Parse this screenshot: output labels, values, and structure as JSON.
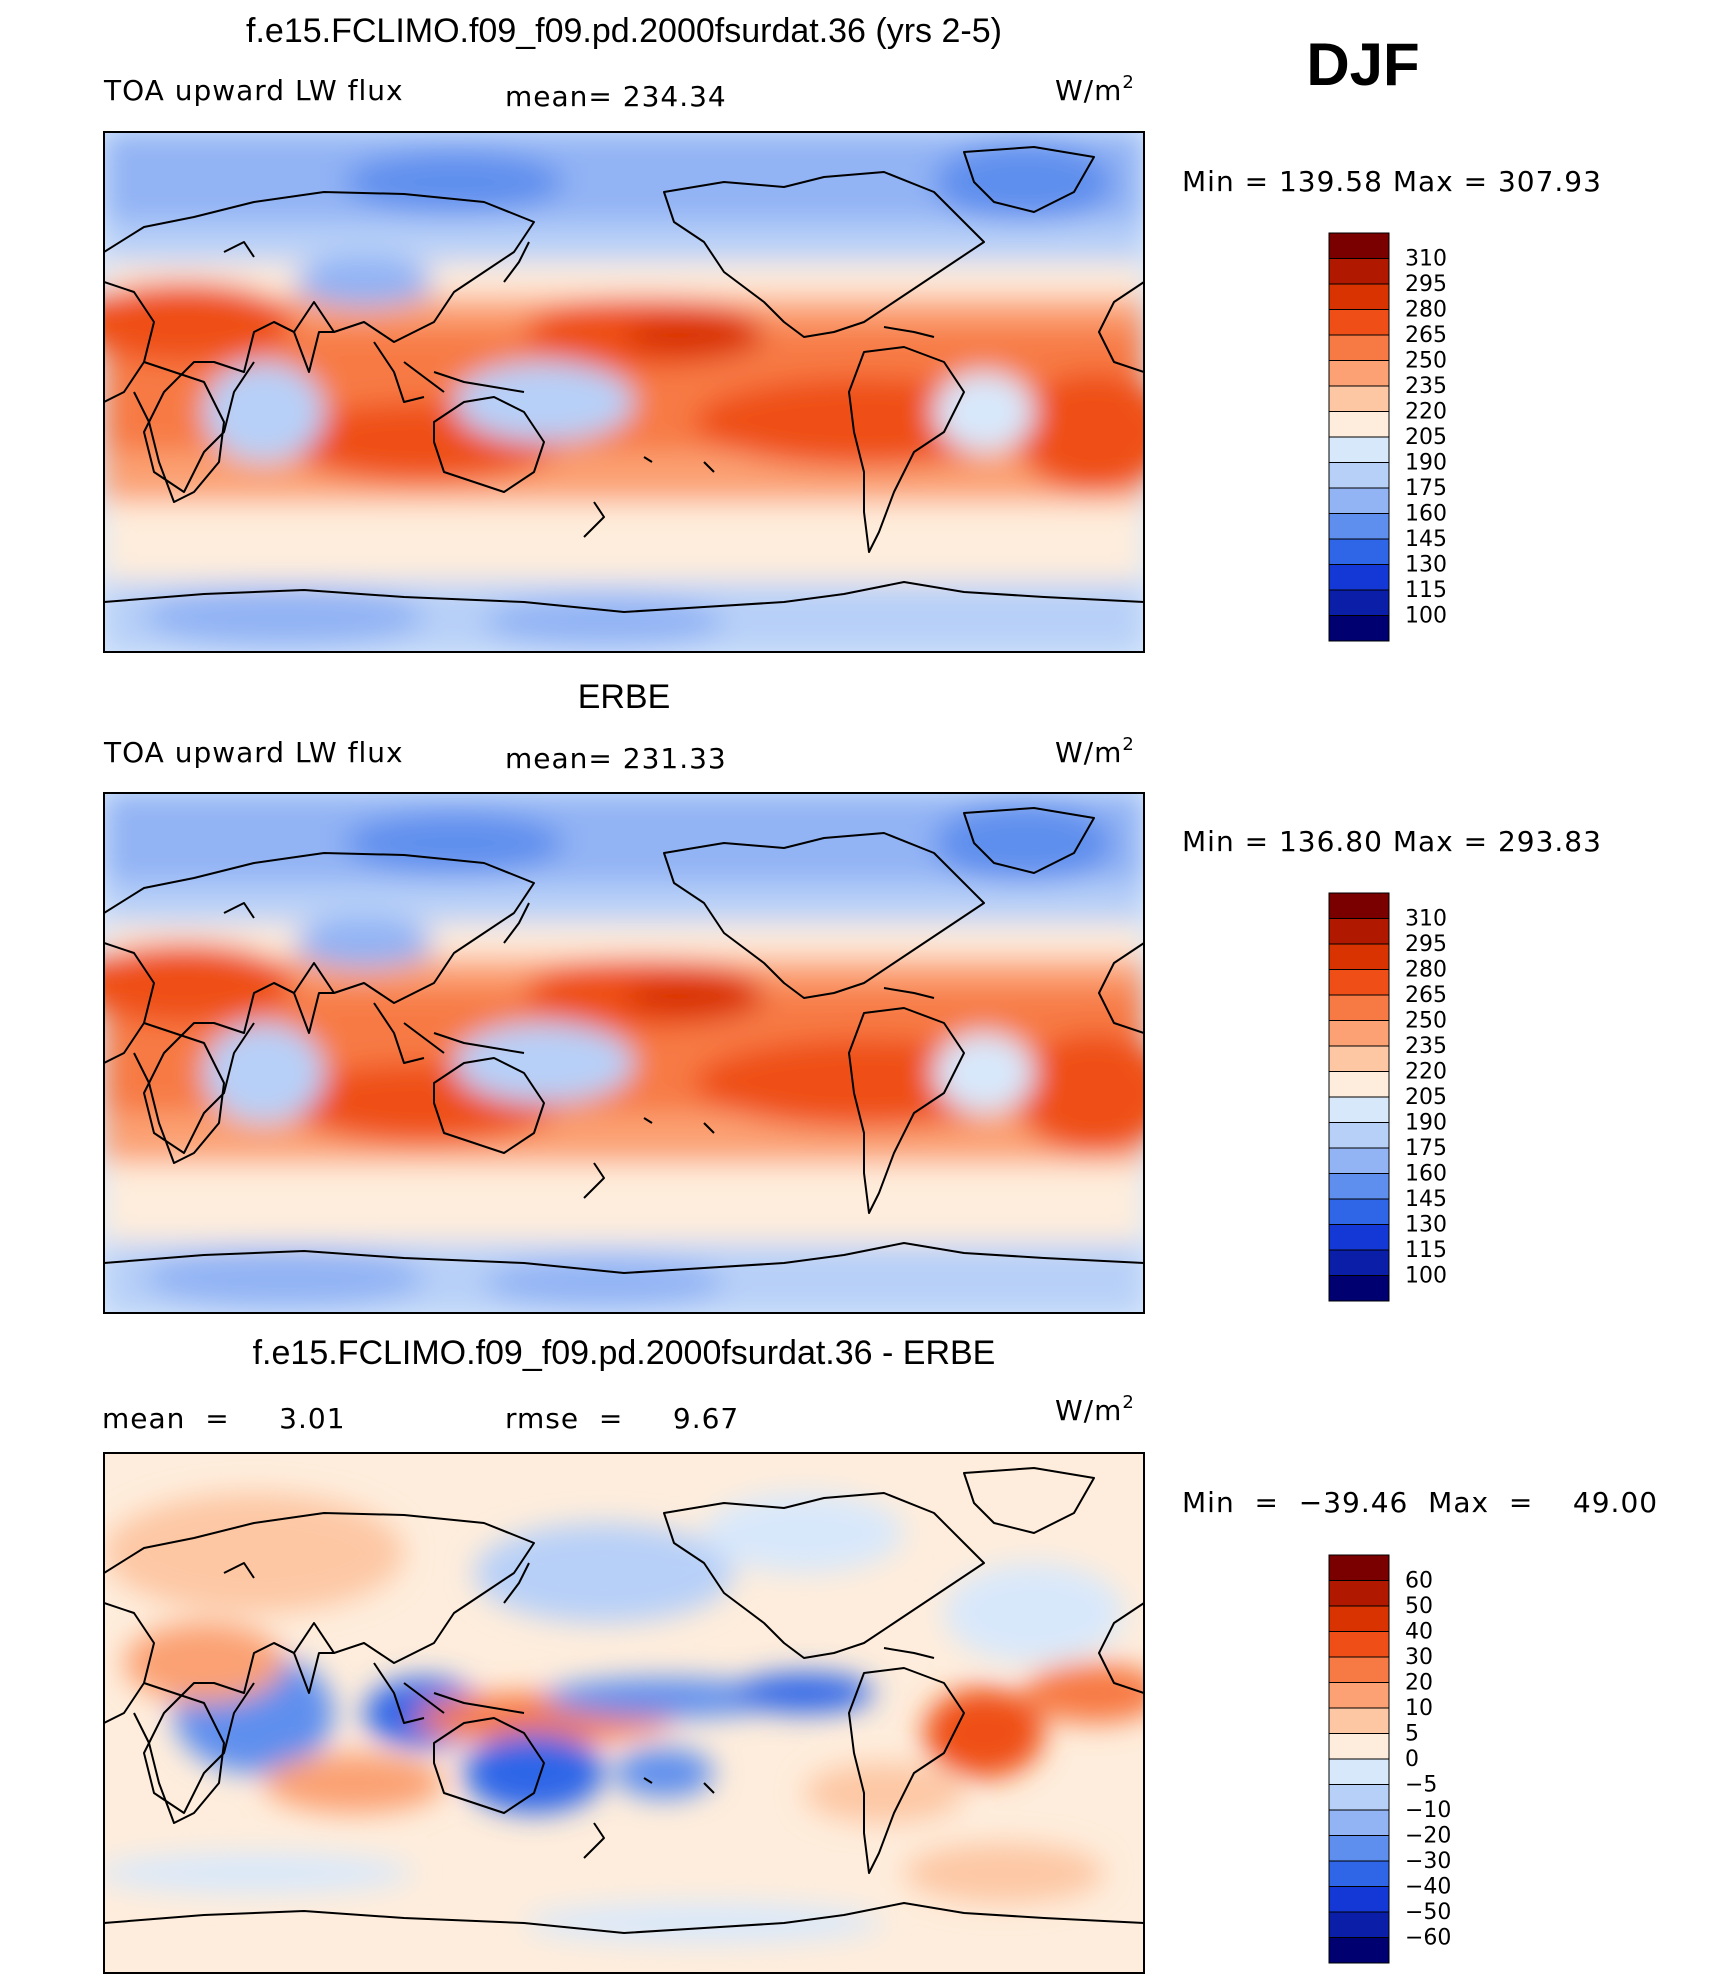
{
  "season": "DJF",
  "panels": [
    {
      "title": "f.e15.FCLIMO.f09_f09.pd.2000fsurdat.36 (yrs 2-5)",
      "left_label": "TOA upward LW flux",
      "center_label": "mean= 234.34",
      "units": "W/m",
      "units_sup": "2",
      "minmax": "Min  =  139.58  Max  =  307.93"
    },
    {
      "title": "ERBE",
      "left_label": "TOA upward LW flux",
      "center_label": "mean= 231.33",
      "units": "W/m",
      "units_sup": "2",
      "minmax": "Min  =  136.80  Max  =  293.83"
    },
    {
      "title": "f.e15.FCLIMO.f09_f09.pd.2000fsurdat.36 - ERBE",
      "left_label": "mean  =     3.01",
      "center_label": "rmse  =     9.67",
      "units": "W/m",
      "units_sup": "2",
      "minmax": "Min  =  −39.46  Max  =    49.00"
    }
  ],
  "chart_data": [
    {
      "type": "heatmap",
      "title": "f.e15.FCLIMO.f09_f09.pd.2000fsurdat.36 (yrs 2-5)",
      "variable": "TOA upward LW flux",
      "units": "W/m2",
      "mean": 234.34,
      "min": 139.58,
      "max": 307.93,
      "colorbar_levels": [
        310,
        295,
        280,
        265,
        250,
        235,
        220,
        205,
        190,
        175,
        160,
        145,
        130,
        115,
        100
      ],
      "colorbar_colors": [
        "#7a0000",
        "#b01800",
        "#d83300",
        "#ef4f17",
        "#f77a44",
        "#fba173",
        "#fdc7a4",
        "#feeddc",
        "#d8e8fb",
        "#b7d0f8",
        "#92b3f4",
        "#5f8fee",
        "#2f66e8",
        "#1438d6",
        "#0a1ea8",
        "#000070"
      ]
    },
    {
      "type": "heatmap",
      "title": "ERBE",
      "variable": "TOA upward LW flux",
      "units": "W/m2",
      "mean": 231.33,
      "min": 136.8,
      "max": 293.83,
      "colorbar_levels": [
        310,
        295,
        280,
        265,
        250,
        235,
        220,
        205,
        190,
        175,
        160,
        145,
        130,
        115,
        100
      ],
      "colorbar_colors": [
        "#7a0000",
        "#b01800",
        "#d83300",
        "#ef4f17",
        "#f77a44",
        "#fba173",
        "#fdc7a4",
        "#feeddc",
        "#d8e8fb",
        "#b7d0f8",
        "#92b3f4",
        "#5f8fee",
        "#2f66e8",
        "#1438d6",
        "#0a1ea8",
        "#000070"
      ]
    },
    {
      "type": "heatmap",
      "title": "f.e15.FCLIMO.f09_f09.pd.2000fsurdat.36 - ERBE",
      "units": "W/m2",
      "mean": 3.01,
      "rmse": 9.67,
      "min": -39.46,
      "max": 49.0,
      "colorbar_levels": [
        "60",
        "50",
        "40",
        "30",
        "20",
        "10",
        "5",
        "0",
        "−5",
        "−10",
        "−20",
        "−30",
        "−40",
        "−50",
        "−60"
      ],
      "colorbar_colors": [
        "#7a0000",
        "#b01800",
        "#d83300",
        "#ef4f17",
        "#f77a44",
        "#fba173",
        "#fdc7a4",
        "#feeddc",
        "#d8e8fb",
        "#b7d0f8",
        "#92b3f4",
        "#5f8fee",
        "#2f66e8",
        "#1438d6",
        "#0a1ea8",
        "#000070"
      ]
    }
  ]
}
